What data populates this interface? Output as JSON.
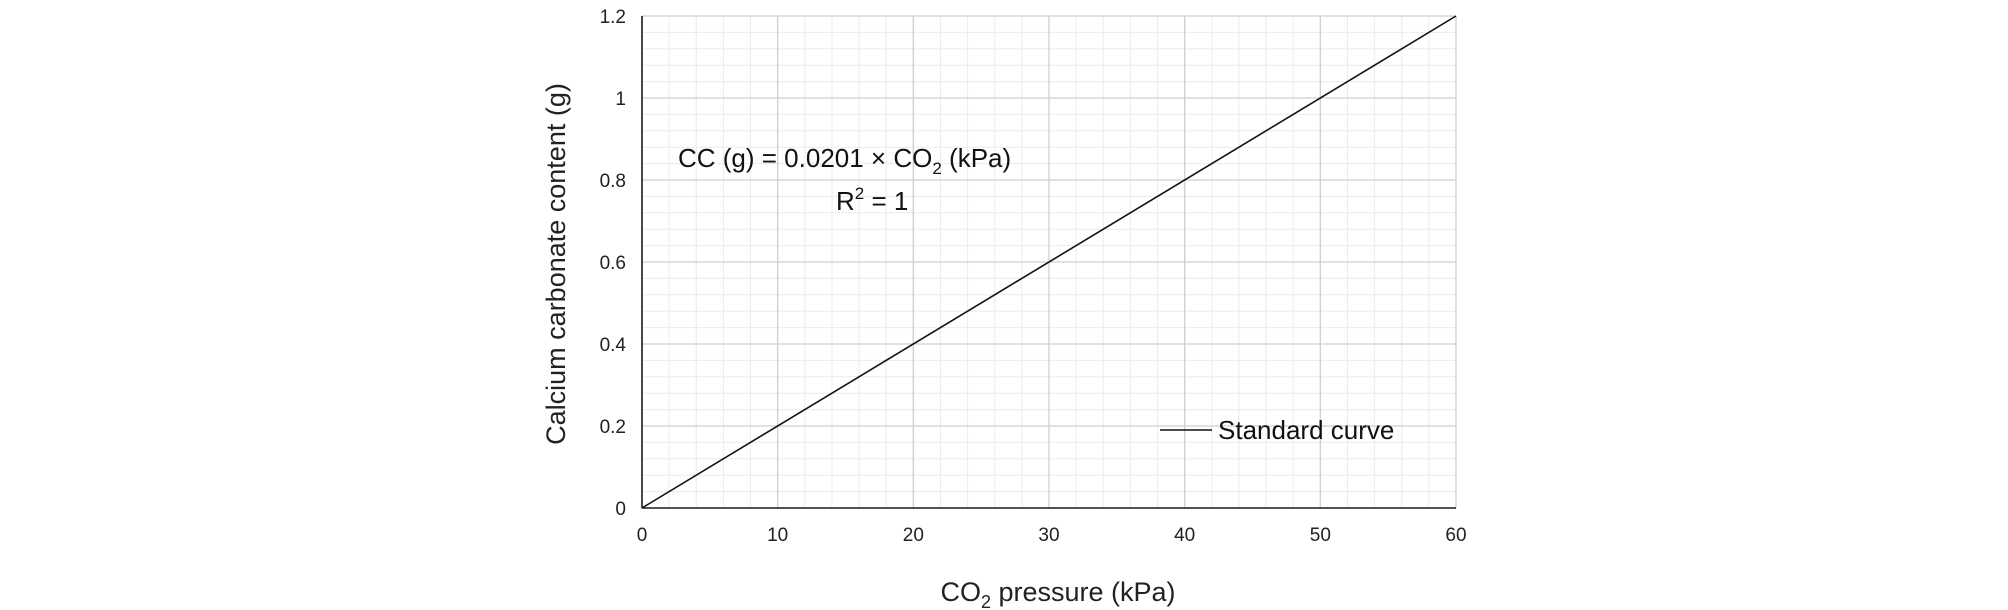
{
  "chart_data": {
    "type": "line",
    "title": "",
    "xlabel": {
      "pre": "CO",
      "sub": "2",
      "post": " pressure (kPa)"
    },
    "ylabel": "Calcium carbonate content (g)",
    "xlim": [
      0,
      60
    ],
    "ylim": [
      0,
      1.2
    ],
    "x_ticks": [
      "0",
      "10",
      "20",
      "30",
      "40",
      "50",
      "60"
    ],
    "y_ticks": [
      "0",
      "0.2",
      "0.4",
      "0.6",
      "0.8",
      "1",
      "1.2"
    ],
    "x_tick_values": [
      0,
      10,
      20,
      30,
      40,
      50,
      60
    ],
    "y_tick_values": [
      0,
      0.2,
      0.4,
      0.6,
      0.8,
      1.0,
      1.2
    ],
    "major_grid": true,
    "minor_grid": true,
    "x_minor_step": 2,
    "y_minor_step": 0.04,
    "legend": {
      "position": "bottom-right"
    },
    "series": [
      {
        "name": "Standard curve",
        "color": "#111111",
        "x": [
          0,
          60
        ],
        "y": [
          0,
          1.2
        ]
      }
    ],
    "annotations": {
      "equation": {
        "pre": "CC (g) = 0.0201 ×  CO",
        "sub": "2",
        "post": " (kPa)"
      },
      "r_squared": {
        "pre": "R",
        "sup": "2",
        "post": " = 1"
      }
    }
  }
}
